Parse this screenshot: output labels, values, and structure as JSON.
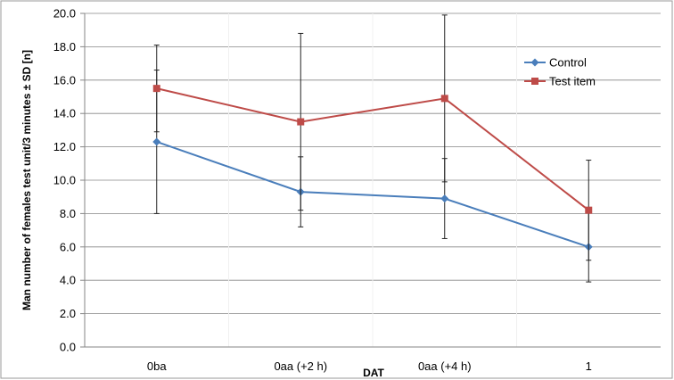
{
  "chart_data": {
    "type": "line",
    "title": "",
    "xlabel": "DAT",
    "ylabel": "Man number of females test unit/3 minutes ± SD [n]",
    "categories": [
      "0ba",
      "0aa (+2 h)",
      "0aa (+4 h)",
      "1"
    ],
    "ylim": [
      0,
      20
    ],
    "ytick_step": 2,
    "yticks": [
      "0.0",
      "2.0",
      "4.0",
      "6.0",
      "8.0",
      "10.0",
      "12.0",
      "14.0",
      "16.0",
      "18.0",
      "20.0"
    ],
    "grid": "horizontal",
    "legend": "top-right",
    "series": [
      {
        "name": "Control",
        "color": "#4a7ebb",
        "marker": "diamond",
        "values": [
          12.3,
          9.3,
          8.9,
          6.0
        ],
        "sd": [
          4.3,
          2.1,
          2.4,
          2.1
        ]
      },
      {
        "name": "Test item",
        "color": "#be4b48",
        "marker": "square",
        "values": [
          15.5,
          13.5,
          14.9,
          8.2
        ],
        "sd": [
          2.6,
          5.3,
          5.0,
          3.0
        ]
      }
    ]
  }
}
